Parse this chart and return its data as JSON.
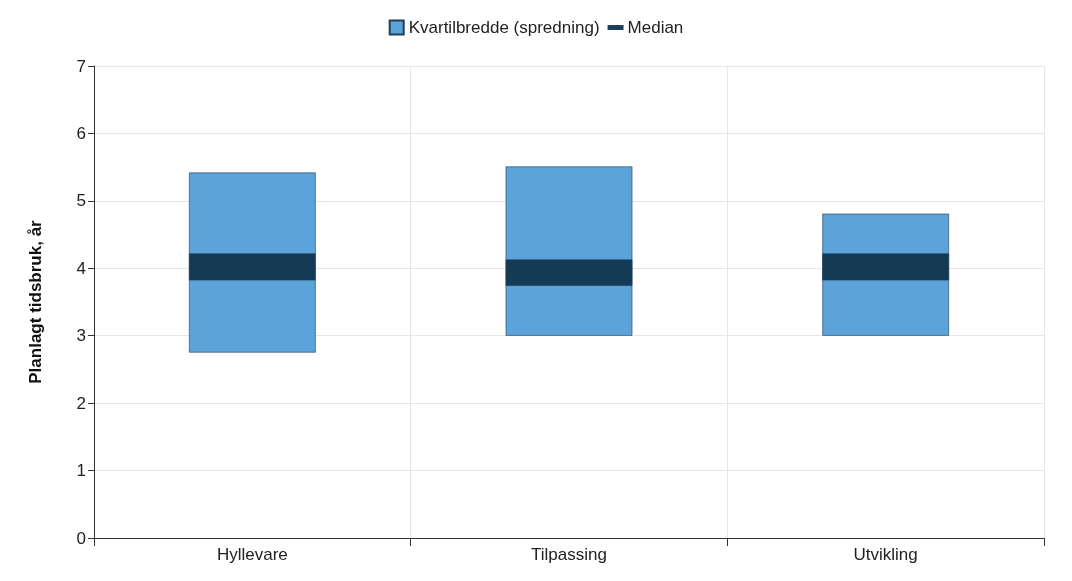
{
  "chart_data": {
    "type": "bar",
    "ylabel": "Planlagt tidsbruk, år",
    "categories": [
      "Hyllevare",
      "Tilpassing",
      "Utvikling"
    ],
    "series": [
      {
        "name": "Kvartilbredde (spredning)",
        "color": "#5ba3d9",
        "base": [
          2.75,
          3.0,
          3.0
        ],
        "values": [
          2.67,
          2.51,
          1.81
        ]
      },
      {
        "name": "Median",
        "color": "#153a55",
        "base": [
          3.82,
          3.74,
          3.82
        ],
        "values": [
          0.4,
          0.39,
          0.4
        ]
      }
    ],
    "ylim": [
      0,
      7
    ],
    "yticks": [
      0,
      1,
      2,
      3,
      4,
      5,
      6,
      7
    ],
    "grid": true,
    "legend": "top"
  }
}
